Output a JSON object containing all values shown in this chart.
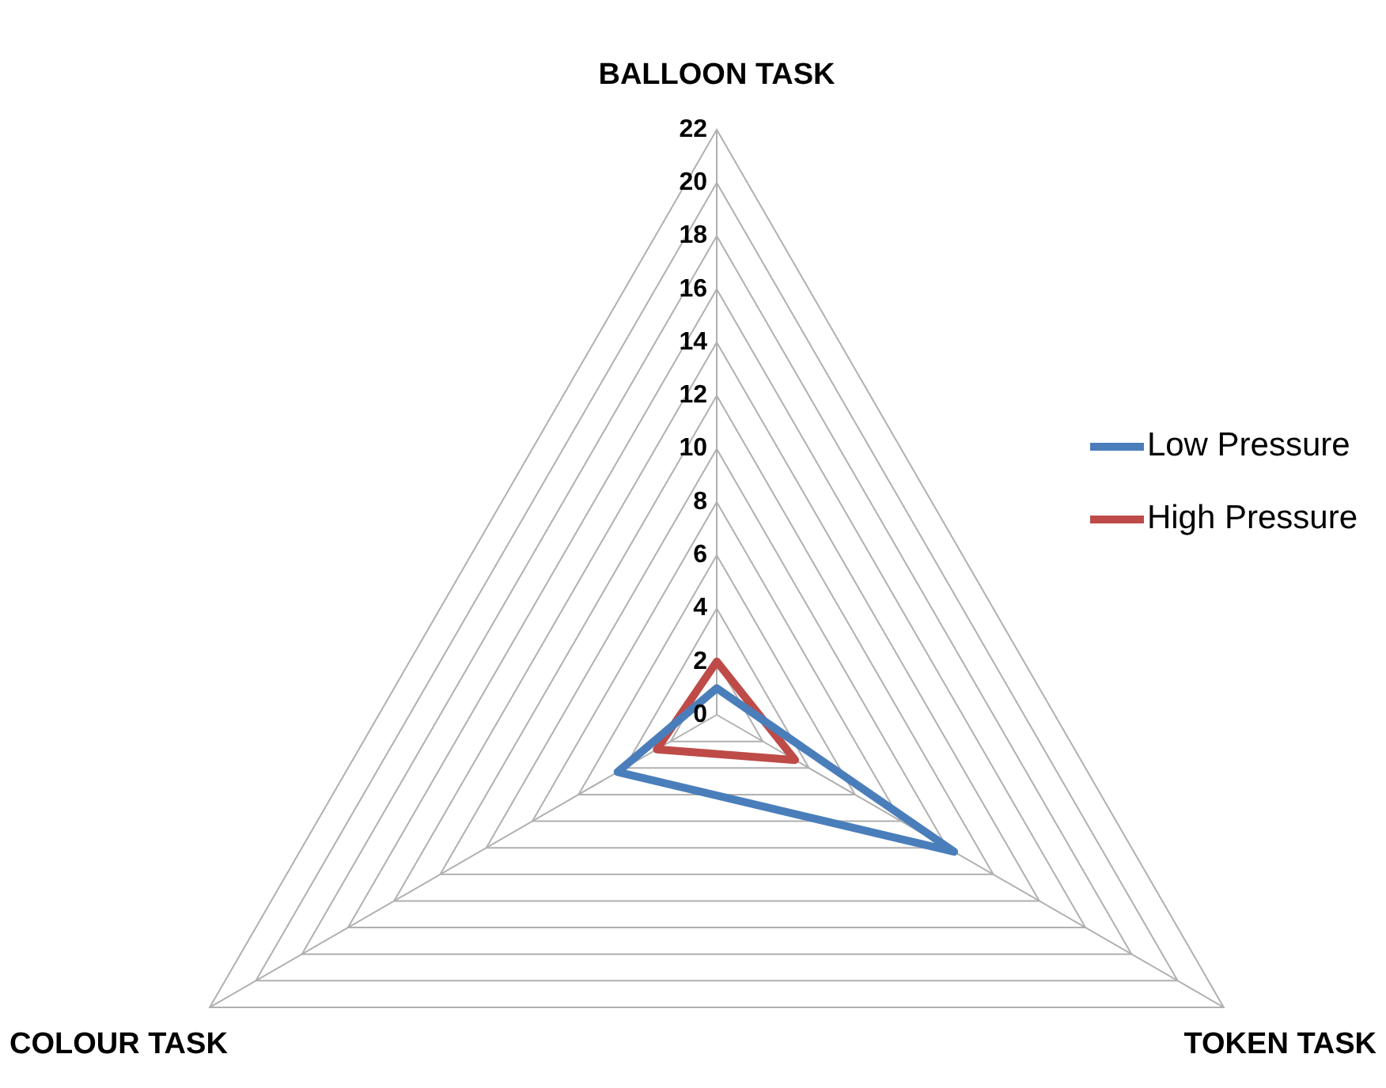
{
  "chart_data": {
    "type": "radar",
    "categories": [
      "BALLOON TASK",
      "TOKEN TASK",
      "COLOUR TASK"
    ],
    "series": [
      {
        "name": "Low Pressure",
        "color": "#4a7ebb",
        "values": [
          1,
          10.3,
          4.3
        ]
      },
      {
        "name": "High Pressure",
        "color": "#be4b48",
        "values": [
          2,
          3.4,
          2.6
        ]
      }
    ],
    "ylim": [
      0,
      22
    ],
    "yticks": [
      0,
      2,
      4,
      6,
      8,
      10,
      12,
      14,
      16,
      18,
      20,
      22
    ],
    "grid": true,
    "legend": "right",
    "marker": "none"
  }
}
